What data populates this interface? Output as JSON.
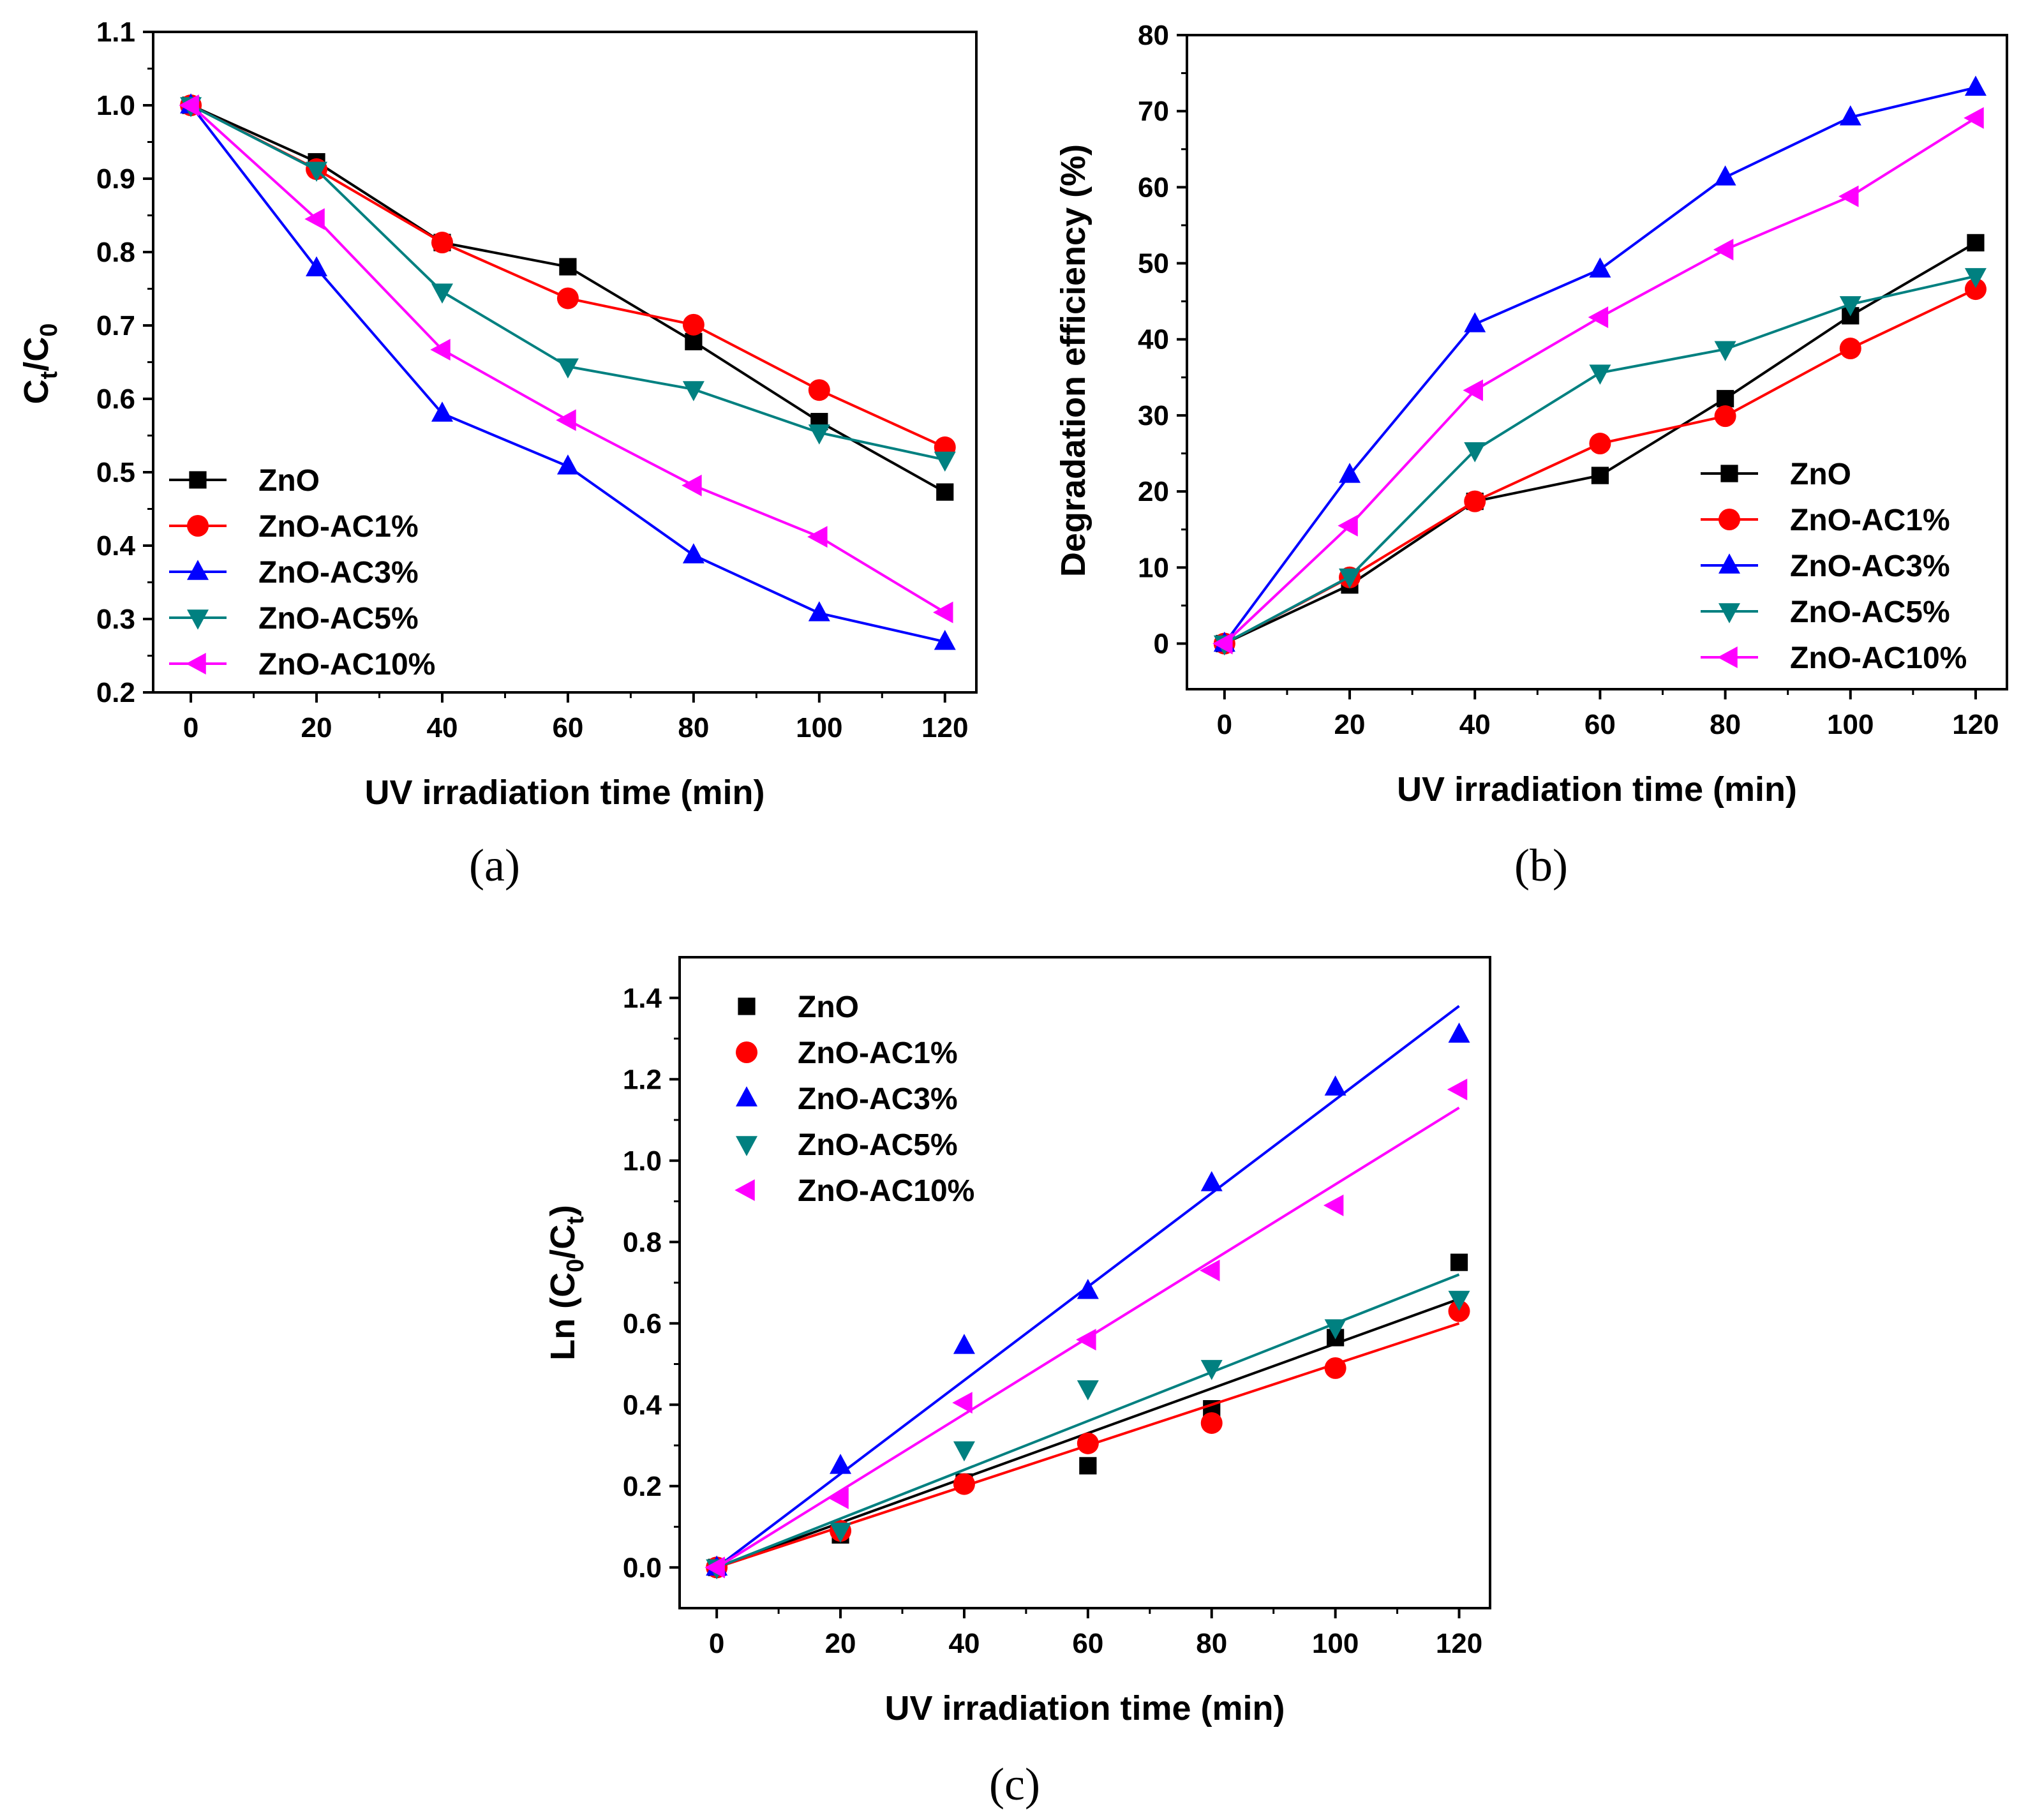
{
  "chart_data": [
    {
      "id": "a",
      "type": "line",
      "panel_label": "(a)",
      "xlabel": "UV irradiation time (min)",
      "ylabel": {
        "base": "C",
        "sub1": "t",
        "mid": "/C",
        "sub2": "0"
      },
      "xlim": [
        -6,
        125
      ],
      "ylim": [
        0.2,
        1.1
      ],
      "xticks": [
        0,
        20,
        40,
        60,
        80,
        100,
        120
      ],
      "xtick_labels": [
        "0",
        "20",
        "40",
        "60",
        "80",
        "100",
        "120"
      ],
      "yticks": [
        0.2,
        0.3,
        0.4,
        0.5,
        0.6,
        0.7,
        0.8,
        0.9,
        1.0,
        1.1
      ],
      "ytick_labels": [
        "0.2",
        "0.3",
        "0.4",
        "0.5",
        "0.6",
        "0.7",
        "0.8",
        "0.9",
        "1.0",
        "1.1"
      ],
      "legend_position": "bottom-left",
      "x": [
        0,
        20,
        40,
        60,
        80,
        100,
        120
      ],
      "series": [
        {
          "name": "ZnO",
          "color": "#000000",
          "marker": "square",
          "values": [
            1.0,
            0.923,
            0.813,
            0.78,
            0.678,
            0.569,
            0.473
          ]
        },
        {
          "name": "ZnO-AC1%",
          "color": "#ff0000",
          "marker": "circle",
          "values": [
            1.0,
            0.913,
            0.813,
            0.737,
            0.701,
            0.612,
            0.534
          ]
        },
        {
          "name": "ZnO-AC3%",
          "color": "#0000ff",
          "marker": "triangle-up",
          "values": [
            1.0,
            0.778,
            0.58,
            0.508,
            0.387,
            0.308,
            0.269
          ]
        },
        {
          "name": "ZnO-AC5%",
          "color": "#008080",
          "marker": "triangle-down",
          "values": [
            1.0,
            0.912,
            0.746,
            0.644,
            0.613,
            0.554,
            0.517
          ]
        },
        {
          "name": "ZnO-AC10%",
          "color": "#ff00ff",
          "marker": "triangle-left",
          "values": [
            1.0,
            0.845,
            0.667,
            0.571,
            0.482,
            0.412,
            0.309
          ]
        }
      ]
    },
    {
      "id": "b",
      "type": "line",
      "panel_label": "(b)",
      "xlabel": "UV irradiation time (min)",
      "ylabel": "Degradation efficiency (%)",
      "xlim": [
        -6,
        125
      ],
      "ylim": [
        -6,
        80
      ],
      "xticks": [
        0,
        20,
        40,
        60,
        80,
        100,
        120
      ],
      "xtick_labels": [
        "0",
        "20",
        "40",
        "60",
        "80",
        "100",
        "120"
      ],
      "yticks": [
        0,
        10,
        20,
        30,
        40,
        50,
        60,
        70,
        80
      ],
      "ytick_labels": [
        "0",
        "10",
        "20",
        "30",
        "40",
        "50",
        "60",
        "70",
        "80"
      ],
      "legend_position": "bottom-right",
      "x": [
        0,
        20,
        40,
        60,
        80,
        100,
        120
      ],
      "series": [
        {
          "name": "ZnO",
          "color": "#000000",
          "marker": "square",
          "values": [
            0,
            7.7,
            18.7,
            22.1,
            32.2,
            43.1,
            52.7
          ]
        },
        {
          "name": "ZnO-AC1%",
          "color": "#ff0000",
          "marker": "circle",
          "values": [
            0,
            8.7,
            18.7,
            26.3,
            29.9,
            38.8,
            46.6
          ]
        },
        {
          "name": "ZnO-AC3%",
          "color": "#0000ff",
          "marker": "triangle-up",
          "values": [
            0,
            22.2,
            42.0,
            49.2,
            61.3,
            69.2,
            73.1
          ]
        },
        {
          "name": "ZnO-AC5%",
          "color": "#008080",
          "marker": "triangle-down",
          "values": [
            0,
            8.8,
            25.4,
            35.6,
            38.7,
            44.6,
            48.3
          ]
        },
        {
          "name": "ZnO-AC10%",
          "color": "#ff00ff",
          "marker": "triangle-left",
          "values": [
            0,
            15.5,
            33.3,
            42.9,
            51.8,
            58.8,
            69.1
          ]
        }
      ]
    },
    {
      "id": "c",
      "type": "scatter",
      "panel_label": "(c)",
      "xlabel": "UV irradiation time (min)",
      "ylabel": {
        "base": "Ln (C",
        "sub1": "0",
        "mid": "/C",
        "sub2": "t",
        "end": ")"
      },
      "xlim": [
        -6,
        125
      ],
      "ylim": [
        -0.1,
        1.5
      ],
      "xticks": [
        0,
        20,
        40,
        60,
        80,
        100,
        120
      ],
      "xtick_labels": [
        "0",
        "20",
        "40",
        "60",
        "80",
        "100",
        "120"
      ],
      "yticks": [
        0.0,
        0.2,
        0.4,
        0.6,
        0.8,
        1.0,
        1.2,
        1.4
      ],
      "ytick_labels": [
        "0.0",
        "0.2",
        "0.4",
        "0.6",
        "0.8",
        "1.0",
        "1.2",
        "1.4"
      ],
      "legend_position": "top-left",
      "x": [
        0,
        20,
        40,
        60,
        80,
        100,
        120
      ],
      "series": [
        {
          "name": "ZnO",
          "color": "#000000",
          "marker": "square",
          "values": [
            0,
            0.08,
            0.21,
            0.25,
            0.39,
            0.565,
            0.75
          ],
          "fit_end": 0.66
        },
        {
          "name": "ZnO-AC1%",
          "color": "#ff0000",
          "marker": "circle",
          "values": [
            0,
            0.09,
            0.205,
            0.305,
            0.355,
            0.49,
            0.63
          ],
          "fit_end": 0.6
        },
        {
          "name": "ZnO-AC3%",
          "color": "#0000ff",
          "marker": "triangle-up",
          "values": [
            0,
            0.25,
            0.545,
            0.68,
            0.945,
            1.18,
            1.31
          ],
          "fit_end": 1.38
        },
        {
          "name": "ZnO-AC5%",
          "color": "#008080",
          "marker": "triangle-down",
          "values": [
            0,
            0.09,
            0.29,
            0.44,
            0.49,
            0.59,
            0.66
          ],
          "fit_end": 0.72
        },
        {
          "name": "ZnO-AC10%",
          "color": "#ff00ff",
          "marker": "triangle-left",
          "values": [
            0,
            0.17,
            0.405,
            0.56,
            0.73,
            0.89,
            1.175
          ],
          "fit_end": 1.13
        }
      ]
    }
  ]
}
